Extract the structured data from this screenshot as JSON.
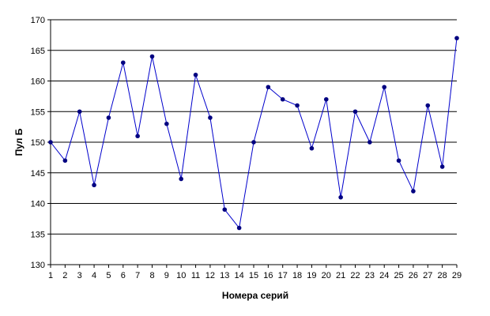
{
  "chart_data": {
    "type": "line",
    "xlabel": "Номера серий",
    "ylabel": "Пул Б",
    "ylim": [
      130,
      170
    ],
    "yticks": [
      130,
      135,
      140,
      145,
      150,
      155,
      160,
      165,
      170
    ],
    "grid": "horizontal",
    "legend": "none",
    "categories": [
      "1",
      "2",
      "3",
      "4",
      "5",
      "6",
      "7",
      "8",
      "9",
      "10",
      "11",
      "12",
      "13",
      "14",
      "15",
      "16",
      "17",
      "18",
      "19",
      "20",
      "21",
      "22",
      "23",
      "24",
      "25",
      "26",
      "27",
      "28",
      "29"
    ],
    "series": [
      {
        "values": [
          150,
          147,
          155,
          143,
          154,
          163,
          151,
          164,
          153,
          144,
          161,
          154,
          139,
          136,
          150,
          159,
          157,
          156,
          149,
          157,
          141,
          155,
          150,
          159,
          147,
          142,
          156,
          146,
          167
        ],
        "color": "#0000cc",
        "marker_color": "#000080"
      }
    ]
  }
}
